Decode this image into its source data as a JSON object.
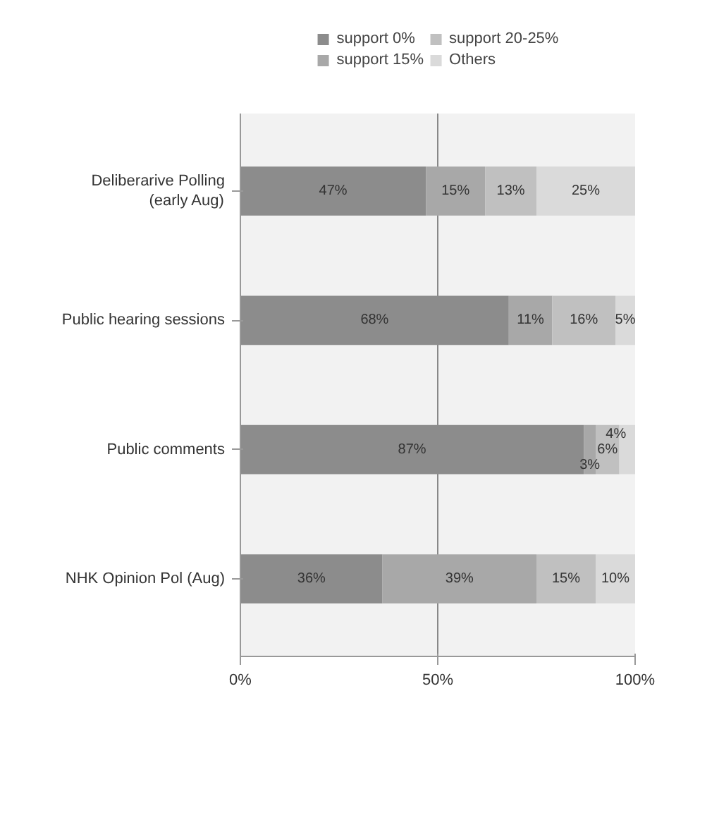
{
  "chart_data": {
    "type": "bar",
    "orientation": "horizontal",
    "stacked": true,
    "categories": [
      "Deliberarive Polling\n(early Aug)",
      "Public hearing sessions",
      "Public comments",
      "NHK Opinion Pol (Aug)"
    ],
    "series": [
      {
        "name": "support 0%",
        "color": "#8c8c8c",
        "values": [
          47,
          68,
          87,
          36
        ]
      },
      {
        "name": "support 15%",
        "color": "#a8a8a8",
        "values": [
          15,
          11,
          3,
          39
        ]
      },
      {
        "name": "support 20-25%",
        "color": "#c0c0c0",
        "values": [
          13,
          16,
          6,
          15
        ]
      },
      {
        "name": "Others",
        "color": "#dadada",
        "values": [
          25,
          5,
          4,
          10
        ]
      }
    ],
    "xlim": [
      0,
      100
    ],
    "xticks": [
      {
        "value": 0,
        "label": "0%"
      },
      {
        "value": 50,
        "label": "50%"
      },
      {
        "value": 100,
        "label": "100%"
      }
    ],
    "value_labels": [
      [
        "47%",
        "68%",
        "87%",
        "36%"
      ],
      [
        "15%",
        "11%",
        "3%",
        "39%"
      ],
      [
        "13%",
        "16%",
        "6%",
        "15%"
      ],
      [
        "25%",
        "5%",
        "4%",
        "10%"
      ]
    ],
    "grid": "x",
    "legend": "top"
  }
}
